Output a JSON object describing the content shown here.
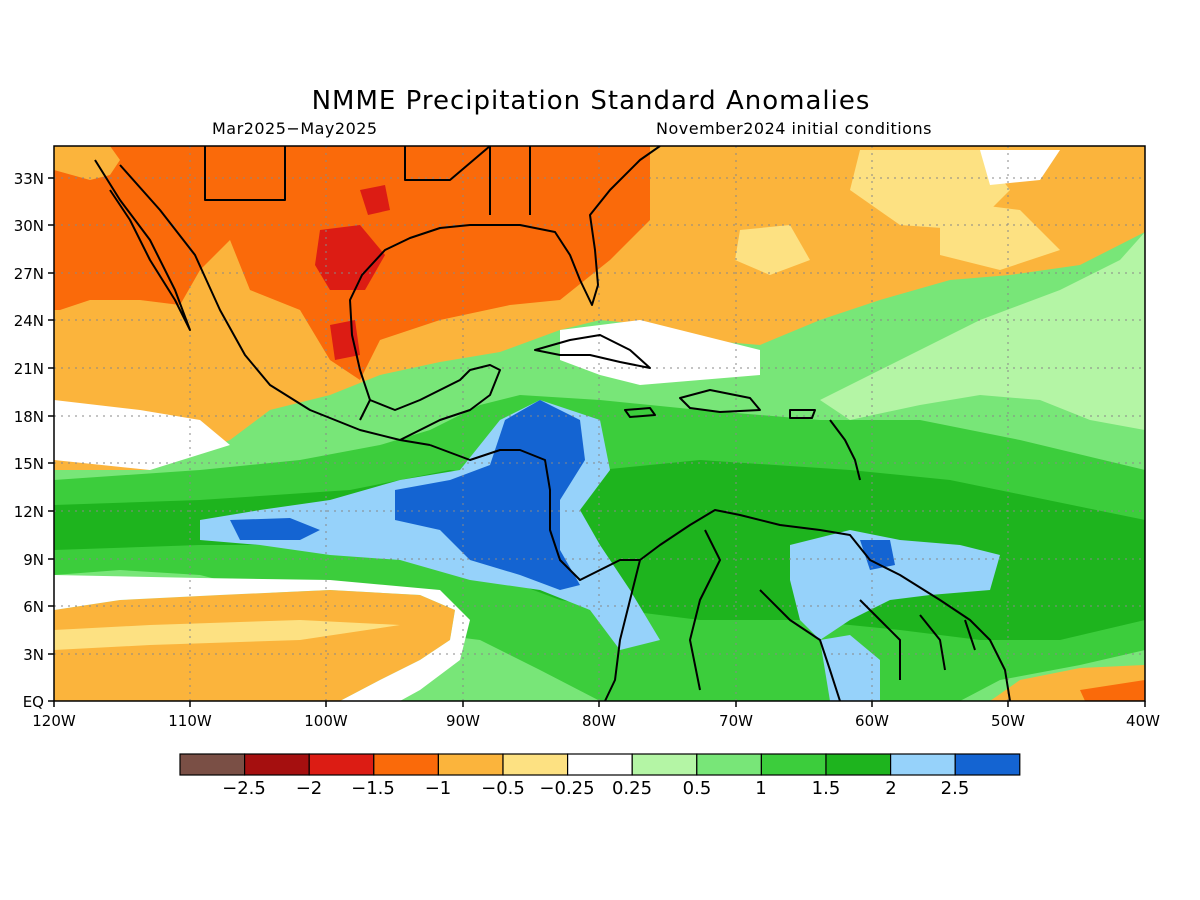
{
  "title": "NMME Precipitation Standard Anomalies",
  "period": "Mar2025−May2025",
  "initial_conditions": "November2024 initial conditions",
  "map": {
    "lon_labels": [
      "120W",
      "110W",
      "100W",
      "90W",
      "80W",
      "70W",
      "60W",
      "50W",
      "40W"
    ],
    "lat_labels": [
      "EQ",
      "3N",
      "6N",
      "9N",
      "12N",
      "15N",
      "18N",
      "21N",
      "24N",
      "27N",
      "30N",
      "33N"
    ],
    "lon_range": [
      -120,
      -40
    ],
    "lat_range": [
      0,
      35
    ],
    "grid": "dotted"
  },
  "colorbar": {
    "labels": [
      "−2.5",
      "−2",
      "−1.5",
      "−1",
      "−0.5",
      "−0.25",
      "0.25",
      "0.5",
      "1",
      "1.5",
      "2",
      "2.5"
    ],
    "colors": [
      "#7a4f45",
      "#a50f0f",
      "#dc1c14",
      "#fa6a0a",
      "#fbb43c",
      "#fde182",
      "#ffffff",
      "#b4f5a5",
      "#78e678",
      "#3ccd3c",
      "#1eb41e",
      "#96d2fa",
      "#1464d2"
    ]
  }
}
